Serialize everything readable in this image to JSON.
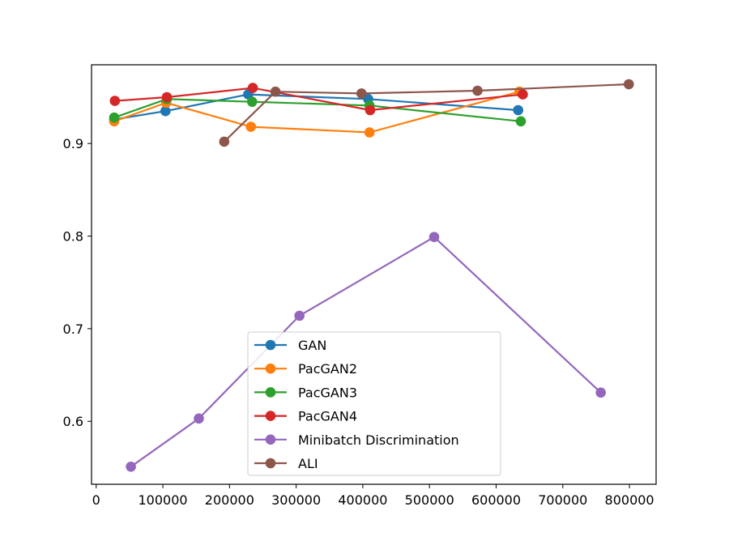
{
  "chart_data": {
    "type": "line",
    "title": "",
    "xlabel": "",
    "ylabel": "",
    "xlim": [
      -7000,
      840000
    ],
    "ylim": [
      0.532,
      0.985
    ],
    "x_ticks": [
      0,
      100000,
      200000,
      300000,
      400000,
      500000,
      600000,
      700000,
      800000
    ],
    "x_tick_labels": [
      "0",
      "100000",
      "200000",
      "300000",
      "400000",
      "500000",
      "600000",
      "700000",
      "800000"
    ],
    "y_ticks": [
      0.6,
      0.7,
      0.8,
      0.9
    ],
    "y_tick_labels": [
      "0.6",
      "0.7",
      "0.8",
      "0.9"
    ],
    "grid": false,
    "legend_position": "lower-center",
    "series": [
      {
        "name": "GAN",
        "color": "#1f77b4",
        "x": [
          27000,
          104000,
          228000,
          408000,
          633000
        ],
        "y": [
          0.926,
          0.935,
          0.953,
          0.948,
          0.936
        ]
      },
      {
        "name": "PacGAN2",
        "color": "#ff7f0e",
        "x": [
          27000,
          105000,
          232000,
          410000,
          635000
        ],
        "y": [
          0.924,
          0.944,
          0.918,
          0.912,
          0.956
        ]
      },
      {
        "name": "PacGAN3",
        "color": "#2ca02c",
        "x": [
          27000,
          106000,
          234000,
          410000,
          637000
        ],
        "y": [
          0.928,
          0.948,
          0.945,
          0.941,
          0.924
        ]
      },
      {
        "name": "PacGAN4",
        "color": "#d62728",
        "x": [
          28000,
          106000,
          235000,
          411000,
          640000
        ],
        "y": [
          0.946,
          0.95,
          0.96,
          0.936,
          0.953
        ]
      },
      {
        "name": "Minibatch Discrimination",
        "color": "#9467bd",
        "x": [
          52000,
          154000,
          305000,
          507000,
          757000
        ],
        "y": [
          0.551,
          0.603,
          0.714,
          0.799,
          0.631
        ]
      },
      {
        "name": "ALI",
        "color": "#8c564b",
        "x": [
          192000,
          269000,
          398000,
          572000,
          799000
        ],
        "y": [
          0.902,
          0.956,
          0.954,
          0.957,
          0.964
        ]
      }
    ]
  }
}
